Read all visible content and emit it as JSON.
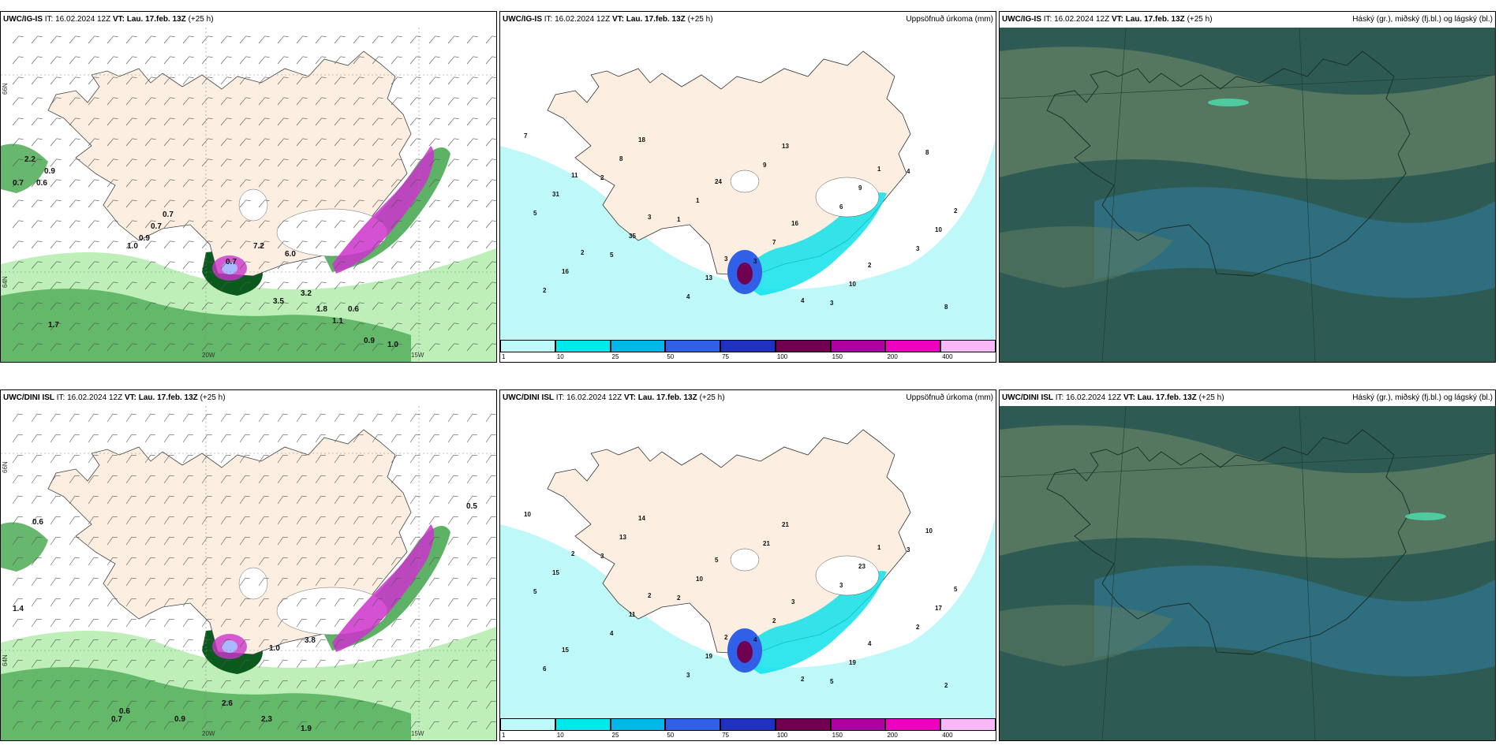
{
  "rows": [
    {
      "model": "UWC/IG-IS",
      "panels": [
        {
          "it_label": "IT:",
          "it": "16.02.2024 12Z",
          "vt_label": "VT:",
          "vt": "Lau. 17.feb. 13Z",
          "lead": "(+25 h)",
          "title_right": ""
        },
        {
          "it_label": "IT:",
          "it": "16.02.2024 12Z",
          "vt_label": "VT:",
          "vt": "Lau. 17.feb. 13Z",
          "lead": "(+25 h)",
          "title_right": "Uppsöfnuð úrkoma (mm)"
        },
        {
          "it_label": "IT:",
          "it": "16.02.2024 12Z",
          "vt_label": "VT:",
          "vt": "Lau. 17.feb. 13Z",
          "lead": "(+25 h)",
          "title_right": "Háský (gr.), miðský (fj.bl.) og lágský (bl.)"
        }
      ],
      "precip_labels": [
        "0.7",
        "0.9",
        "2.2",
        "0.6",
        "0.7",
        "0.7",
        "0.9",
        "1.0",
        "0.7",
        "3.5",
        "3.2",
        "0.6",
        "1.8",
        "1.1",
        "0.9",
        "1.0",
        "1.7",
        "6.0",
        "7.2"
      ],
      "accum_labels": [
        "7",
        "2",
        "1",
        "3",
        "3",
        "4",
        "5",
        "5",
        "4",
        "9",
        "6",
        "3",
        "2",
        "8",
        "1",
        "7",
        "10",
        "8",
        "31",
        "35",
        "13",
        "13",
        "9",
        "10",
        "16",
        "18",
        "24",
        "16",
        "2",
        "8",
        "11",
        "3",
        "3",
        "4",
        "1",
        "2",
        "2"
      ]
    },
    {
      "model": "UWC/DINI ISL",
      "panels": [
        {
          "it_label": "IT:",
          "it": "16.02.2024 12Z",
          "vt_label": "VT:",
          "vt": "Lau. 17.feb. 13Z",
          "lead": "(+25 h)",
          "title_right": ""
        },
        {
          "it_label": "IT:",
          "it": "16.02.2024 12Z",
          "vt_label": "VT:",
          "vt": "Lau. 17.feb. 13Z",
          "lead": "(+25 h)",
          "title_right": "Uppsöfnuð úrkoma (mm)"
        },
        {
          "it_label": "IT:",
          "it": "16.02.2024 12Z",
          "vt_label": "VT:",
          "vt": "Lau. 17.feb. 13Z",
          "lead": "(+25 h)",
          "title_right": "Háský (gr.), miðský (fj.bl.) og lágský (bl.)"
        }
      ],
      "precip_labels": [
        "0.6",
        "0.5",
        "0.7",
        "1.4",
        "0.6",
        "0.9",
        "2.6",
        "2.3",
        "1.9",
        "1.0",
        "3.8"
      ],
      "accum_labels": [
        "10",
        "3",
        "2",
        "4",
        "5",
        "3",
        "5",
        "4",
        "3",
        "21",
        "3",
        "2",
        "6",
        "13",
        "10",
        "2",
        "19",
        "10",
        "15",
        "11",
        "19",
        "21",
        "23",
        "17",
        "15",
        "14",
        "5",
        "3",
        "4",
        "2",
        "2",
        "2",
        "2",
        "2",
        "1",
        "5"
      ]
    }
  ],
  "axis_labels": {
    "lon_20w": "20W",
    "lon_15w": "15W",
    "lat_66n": "66N",
    "lat_64n": "64N"
  },
  "legend": {
    "ticks": [
      "1",
      "10",
      "25",
      "50",
      "75",
      "100",
      "150",
      "200",
      "400"
    ],
    "colors": [
      "#bff8f8",
      "#00e8e8",
      "#00b8e8",
      "#3060e8",
      "#2030c0",
      "#700050",
      "#b000a0",
      "#f000c0",
      "#f8b8f8"
    ]
  },
  "colors": {
    "land": "#fcefe1",
    "precip_light": "#b7edb0",
    "precip_mid": "#4caa55",
    "precip_dark": "#0a5a1e",
    "magenta": "#cc33cc",
    "sat_base": "#2d5a52",
    "cloud_high": "#5a7a62",
    "cloud_low": "#2f7fa3",
    "sea_precip": "#bff8f8"
  }
}
